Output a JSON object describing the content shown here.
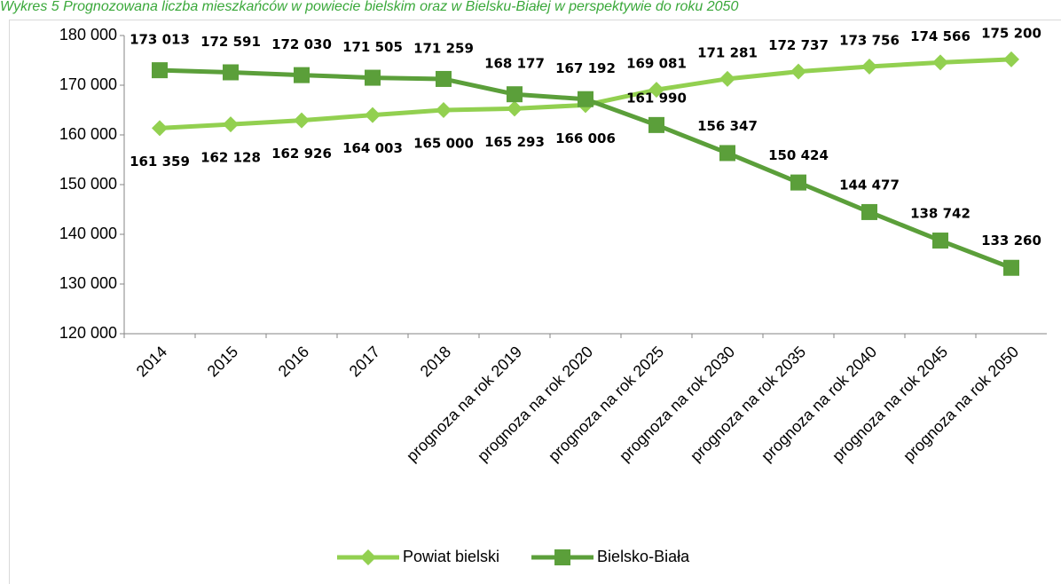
{
  "chart_data": {
    "type": "line",
    "title": "Wykres 5 Prognozowana liczba mieszkańców w powiecie bielskim oraz w Bielsku-Białej w perspektywie do roku 2050",
    "categories": [
      "2014",
      "2015",
      "2016",
      "2017",
      "2018",
      "prognoza na rok 2019",
      "prognoza na rok 2020",
      "prognoza na rok 2025",
      "prognoza na rok 2030",
      "prognoza na rok 2035",
      "prognoza na rok 2040",
      "prognoza na rok 2045",
      "prognoza na rok 2050"
    ],
    "series": [
      {
        "name": "Powiat bielski",
        "color": "#92d050",
        "marker": "diamond",
        "values": [
          161359,
          162128,
          162926,
          164003,
          165000,
          165293,
          166006,
          169081,
          171281,
          172737,
          173756,
          174566,
          175200
        ],
        "value_labels": [
          "161 359",
          "162 128",
          "162 926",
          "164 003",
          "165 000",
          "165 293",
          "166 006",
          "169 081",
          "171 281",
          "172 737",
          "173 756",
          "174 566",
          "175 200"
        ]
      },
      {
        "name": "Bielsko-Biała",
        "color": "#5b9f3a",
        "marker": "square",
        "values": [
          173013,
          172591,
          172030,
          171505,
          171259,
          168177,
          167192,
          161990,
          156347,
          150424,
          144477,
          138742,
          133260
        ],
        "value_labels": [
          "173 013",
          "172 591",
          "172 030",
          "171 505",
          "171 259",
          "168 177",
          "167 192",
          "161 990",
          "156 347",
          "150 424",
          "144 477",
          "138 742",
          "133 260"
        ]
      }
    ],
    "ylim": [
      120000,
      180000
    ],
    "yticks": [
      {
        "value": 120000,
        "label": "120 000"
      },
      {
        "value": 130000,
        "label": "130 000"
      },
      {
        "value": 140000,
        "label": "140 000"
      },
      {
        "value": 150000,
        "label": "150 000"
      },
      {
        "value": 160000,
        "label": "160 000"
      },
      {
        "value": 170000,
        "label": "170 000"
      },
      {
        "value": 180000,
        "label": "180 000"
      }
    ],
    "legend": "bottom"
  }
}
